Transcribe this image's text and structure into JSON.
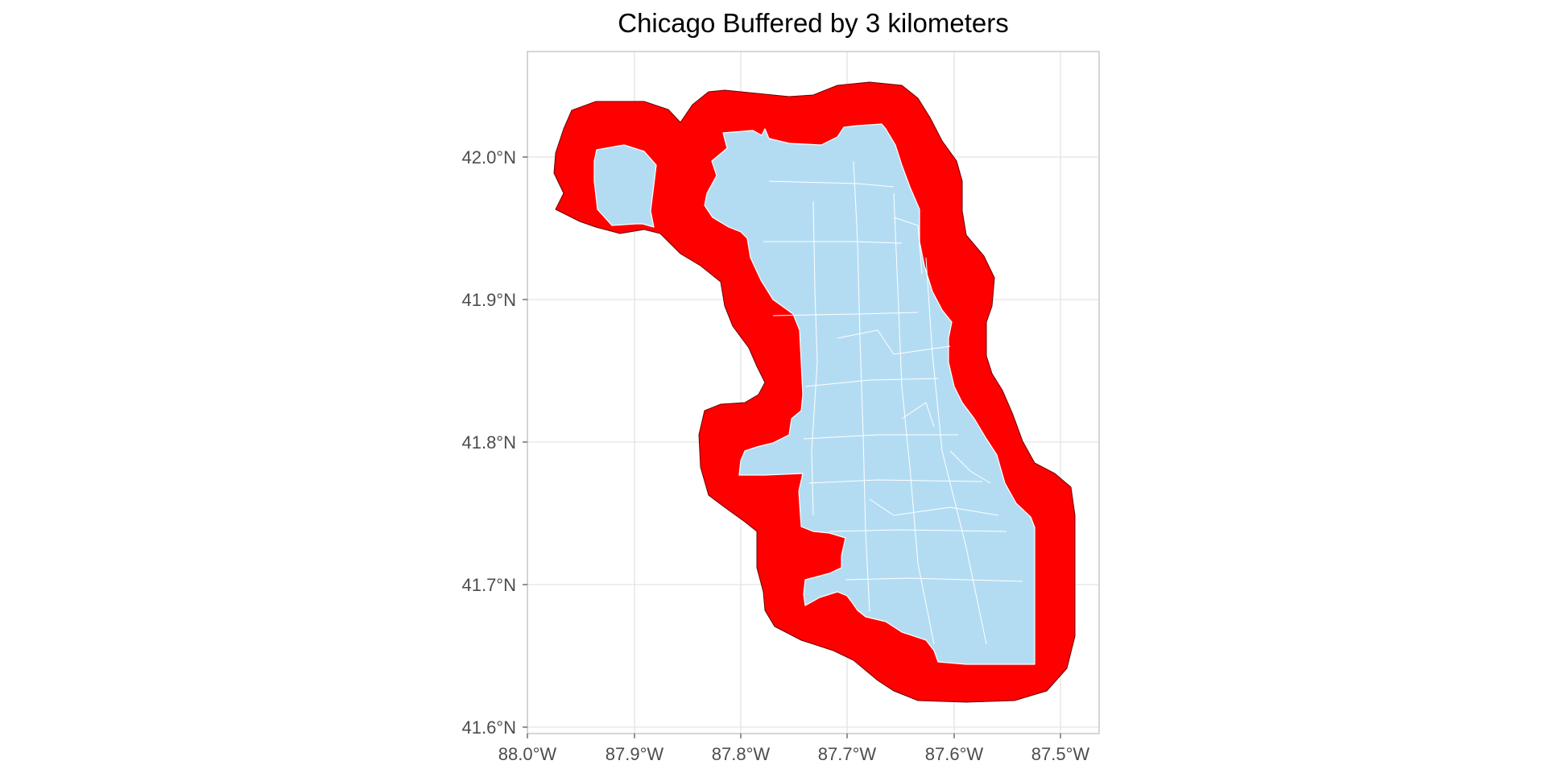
{
  "title": "Chicago Buffered by 3 kilometers",
  "x_axis": {
    "ticks": [
      "88.0°W",
      "87.9°W",
      "87.8°W",
      "87.7°W",
      "87.6°W",
      "87.5°W"
    ]
  },
  "y_axis": {
    "ticks": [
      "42.0°N",
      "41.9°N",
      "41.8°N",
      "41.7°N",
      "41.6°N"
    ]
  },
  "layers": {
    "buffer": {
      "name": "3 km buffer",
      "color": "#ff0000"
    },
    "city": {
      "name": "Chicago community areas",
      "color": "#b3dcf2",
      "border_color": "#ffffff"
    }
  },
  "panel": {
    "grid_color": "#e3e3e3",
    "background": "#ffffff"
  }
}
